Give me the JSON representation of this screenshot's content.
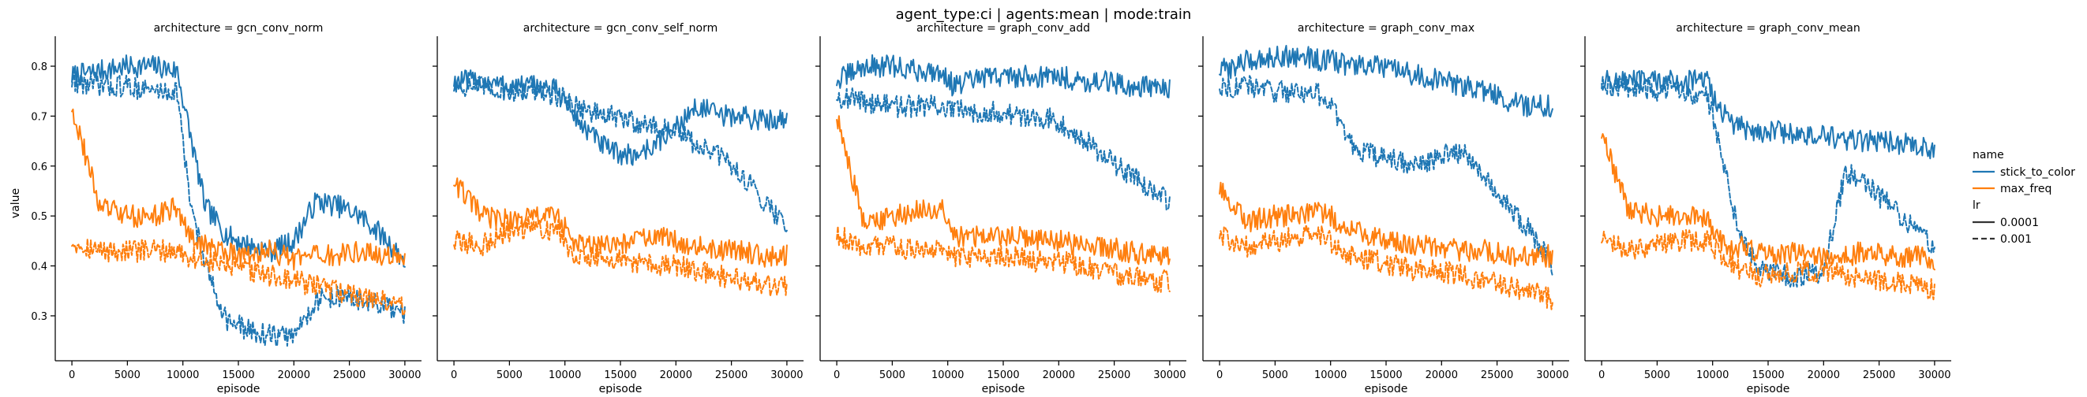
{
  "figure": {
    "suptitle": "agent_type:ci | agents:mean | mode:train",
    "ylabel": "value",
    "xlabel": "episode"
  },
  "legend": {
    "name_title": "name",
    "name_entries": [
      {
        "label": "stick_to_color",
        "color": "#1f77b4"
      },
      {
        "label": "max_freq",
        "color": "#ff7f0e"
      }
    ],
    "lr_title": "lr",
    "lr_entries": [
      {
        "label": "0.0001",
        "dash": "solid"
      },
      {
        "label": "0.001",
        "dash": "dashed"
      }
    ]
  },
  "chart_data": [
    {
      "type": "line",
      "title": "architecture = gcn_conv_norm",
      "xlabel": "episode",
      "ylabel": "value",
      "xlim": [
        -1500,
        31500
      ],
      "ylim": [
        0.21,
        0.86
      ],
      "xticks": [
        0,
        5000,
        10000,
        15000,
        20000,
        25000,
        30000
      ],
      "yticks": [
        0.3,
        0.4,
        0.5,
        0.6,
        0.7,
        0.8
      ],
      "x": [
        0,
        2500,
        5000,
        7500,
        9500,
        10500,
        12000,
        14000,
        16000,
        18000,
        20000,
        22000,
        24000,
        26000,
        28000,
        30000
      ],
      "series": [
        {
          "name": "stick_to_color",
          "lr": "0.0001",
          "color": "#1f77b4",
          "dash": "solid",
          "values": [
            0.78,
            0.79,
            0.8,
            0.8,
            0.79,
            0.68,
            0.52,
            0.46,
            0.44,
            0.43,
            0.45,
            0.53,
            0.52,
            0.5,
            0.46,
            0.41
          ]
        },
        {
          "name": "stick_to_color",
          "lr": "0.001",
          "color": "#1f77b4",
          "dash": "dashed",
          "values": [
            0.77,
            0.76,
            0.76,
            0.75,
            0.75,
            0.55,
            0.4,
            0.29,
            0.27,
            0.26,
            0.26,
            0.33,
            0.34,
            0.33,
            0.32,
            0.3
          ]
        },
        {
          "name": "max_freq",
          "lr": "0.0001",
          "color": "#ff7f0e",
          "dash": "solid",
          "values": [
            0.72,
            0.52,
            0.5,
            0.5,
            0.52,
            0.46,
            0.44,
            0.43,
            0.42,
            0.43,
            0.41,
            0.42,
            0.42,
            0.43,
            0.42,
            0.42
          ]
        },
        {
          "name": "max_freq",
          "lr": "0.001",
          "color": "#ff7f0e",
          "dash": "dashed",
          "values": [
            0.45,
            0.43,
            0.43,
            0.43,
            0.43,
            0.42,
            0.41,
            0.4,
            0.39,
            0.38,
            0.37,
            0.36,
            0.35,
            0.34,
            0.33,
            0.32
          ]
        }
      ]
    },
    {
      "type": "line",
      "title": "architecture = gcn_conv_self_norm",
      "xlabel": "episode",
      "ylabel": "",
      "xlim": [
        -1500,
        31500
      ],
      "ylim": [
        0.21,
        0.86
      ],
      "xticks": [
        0,
        5000,
        10000,
        15000,
        20000,
        25000,
        30000
      ],
      "yticks": [
        0.3,
        0.4,
        0.5,
        0.6,
        0.7,
        0.8
      ],
      "x": [
        0,
        2500,
        5000,
        7500,
        9500,
        10500,
        12000,
        14000,
        16000,
        18000,
        20000,
        22000,
        24000,
        26000,
        28000,
        30000
      ],
      "series": [
        {
          "name": "stick_to_color",
          "lr": "0.0001",
          "color": "#1f77b4",
          "dash": "solid",
          "values": [
            0.77,
            0.77,
            0.76,
            0.76,
            0.75,
            0.71,
            0.67,
            0.63,
            0.62,
            0.64,
            0.68,
            0.72,
            0.7,
            0.7,
            0.69,
            0.7
          ]
        },
        {
          "name": "stick_to_color",
          "lr": "0.001",
          "color": "#1f77b4",
          "dash": "dashed",
          "values": [
            0.76,
            0.76,
            0.75,
            0.75,
            0.74,
            0.73,
            0.71,
            0.7,
            0.69,
            0.68,
            0.67,
            0.64,
            0.62,
            0.58,
            0.53,
            0.48
          ]
        },
        {
          "name": "max_freq",
          "lr": "0.0001",
          "color": "#ff7f0e",
          "dash": "solid",
          "values": [
            0.57,
            0.5,
            0.49,
            0.5,
            0.5,
            0.45,
            0.44,
            0.44,
            0.45,
            0.46,
            0.45,
            0.44,
            0.43,
            0.43,
            0.42,
            0.42
          ]
        },
        {
          "name": "max_freq",
          "lr": "0.001",
          "color": "#ff7f0e",
          "dash": "dashed",
          "values": [
            0.45,
            0.44,
            0.47,
            0.48,
            0.47,
            0.43,
            0.42,
            0.41,
            0.41,
            0.4,
            0.4,
            0.39,
            0.38,
            0.37,
            0.36,
            0.36
          ]
        }
      ]
    },
    {
      "type": "line",
      "title": "architecture = graph_conv_add",
      "xlabel": "episode",
      "ylabel": "",
      "xlim": [
        -1500,
        31500
      ],
      "ylim": [
        0.21,
        0.86
      ],
      "xticks": [
        0,
        5000,
        10000,
        15000,
        20000,
        25000,
        30000
      ],
      "yticks": [
        0.3,
        0.4,
        0.5,
        0.6,
        0.7,
        0.8
      ],
      "x": [
        0,
        2500,
        5000,
        7500,
        9500,
        10500,
        12000,
        14000,
        16000,
        18000,
        20000,
        22000,
        24000,
        26000,
        28000,
        30000
      ],
      "series": [
        {
          "name": "stick_to_color",
          "lr": "0.0001",
          "color": "#1f77b4",
          "dash": "solid",
          "values": [
            0.77,
            0.8,
            0.8,
            0.79,
            0.79,
            0.76,
            0.77,
            0.78,
            0.78,
            0.78,
            0.78,
            0.77,
            0.77,
            0.76,
            0.76,
            0.75
          ]
        },
        {
          "name": "stick_to_color",
          "lr": "0.001",
          "color": "#1f77b4",
          "dash": "dashed",
          "values": [
            0.74,
            0.73,
            0.72,
            0.72,
            0.72,
            0.71,
            0.71,
            0.71,
            0.7,
            0.7,
            0.69,
            0.66,
            0.62,
            0.59,
            0.56,
            0.53
          ]
        },
        {
          "name": "max_freq",
          "lr": "0.0001",
          "color": "#ff7f0e",
          "dash": "solid",
          "values": [
            0.7,
            0.48,
            0.5,
            0.51,
            0.51,
            0.46,
            0.46,
            0.46,
            0.46,
            0.45,
            0.45,
            0.44,
            0.44,
            0.43,
            0.42,
            0.42
          ]
        },
        {
          "name": "max_freq",
          "lr": "0.001",
          "color": "#ff7f0e",
          "dash": "dashed",
          "values": [
            0.46,
            0.44,
            0.44,
            0.43,
            0.43,
            0.42,
            0.42,
            0.42,
            0.42,
            0.41,
            0.41,
            0.4,
            0.39,
            0.38,
            0.37,
            0.37
          ]
        }
      ]
    },
    {
      "type": "line",
      "title": "architecture = graph_conv_max",
      "xlabel": "episode",
      "ylabel": "",
      "xlim": [
        -1500,
        31500
      ],
      "ylim": [
        0.21,
        0.86
      ],
      "xticks": [
        0,
        5000,
        10000,
        15000,
        20000,
        25000,
        30000
      ],
      "yticks": [
        0.3,
        0.4,
        0.5,
        0.6,
        0.7,
        0.8
      ],
      "x": [
        0,
        2500,
        5000,
        7500,
        9500,
        10500,
        12000,
        14000,
        16000,
        18000,
        20000,
        22000,
        24000,
        26000,
        28000,
        30000
      ],
      "series": [
        {
          "name": "stick_to_color",
          "lr": "0.0001",
          "color": "#1f77b4",
          "dash": "solid",
          "values": [
            0.79,
            0.81,
            0.82,
            0.82,
            0.81,
            0.81,
            0.8,
            0.8,
            0.79,
            0.78,
            0.77,
            0.76,
            0.75,
            0.73,
            0.72,
            0.72
          ]
        },
        {
          "name": "stick_to_color",
          "lr": "0.001",
          "color": "#1f77b4",
          "dash": "dashed",
          "values": [
            0.76,
            0.76,
            0.75,
            0.75,
            0.74,
            0.7,
            0.64,
            0.62,
            0.61,
            0.6,
            0.62,
            0.63,
            0.58,
            0.52,
            0.47,
            0.4
          ]
        },
        {
          "name": "max_freq",
          "lr": "0.0001",
          "color": "#ff7f0e",
          "dash": "solid",
          "values": [
            0.55,
            0.49,
            0.5,
            0.5,
            0.51,
            0.49,
            0.47,
            0.46,
            0.45,
            0.44,
            0.44,
            0.43,
            0.43,
            0.42,
            0.42,
            0.42
          ]
        },
        {
          "name": "max_freq",
          "lr": "0.001",
          "color": "#ff7f0e",
          "dash": "dashed",
          "values": [
            0.46,
            0.44,
            0.45,
            0.46,
            0.46,
            0.44,
            0.42,
            0.41,
            0.4,
            0.39,
            0.39,
            0.38,
            0.37,
            0.36,
            0.35,
            0.33
          ]
        }
      ]
    },
    {
      "type": "line",
      "title": "architecture = graph_conv_mean",
      "xlabel": "episode",
      "ylabel": "",
      "xlim": [
        -1500,
        31500
      ],
      "ylim": [
        0.21,
        0.86
      ],
      "xticks": [
        0,
        5000,
        10000,
        15000,
        20000,
        25000,
        30000
      ],
      "yticks": [
        0.3,
        0.4,
        0.5,
        0.6,
        0.7,
        0.8
      ],
      "x": [
        0,
        2500,
        5000,
        7500,
        9500,
        10500,
        12000,
        14000,
        16000,
        18000,
        20000,
        22000,
        24000,
        26000,
        28000,
        30000
      ],
      "series": [
        {
          "name": "stick_to_color",
          "lr": "0.0001",
          "color": "#1f77b4",
          "dash": "solid",
          "values": [
            0.77,
            0.77,
            0.77,
            0.77,
            0.77,
            0.72,
            0.68,
            0.67,
            0.67,
            0.66,
            0.66,
            0.65,
            0.65,
            0.65,
            0.64,
            0.63
          ]
        },
        {
          "name": "stick_to_color",
          "lr": "0.001",
          "color": "#1f77b4",
          "dash": "dashed",
          "values": [
            0.76,
            0.76,
            0.75,
            0.75,
            0.74,
            0.66,
            0.5,
            0.4,
            0.38,
            0.38,
            0.39,
            0.59,
            0.56,
            0.52,
            0.48,
            0.44
          ]
        },
        {
          "name": "max_freq",
          "lr": "0.0001",
          "color": "#ff7f0e",
          "dash": "solid",
          "values": [
            0.66,
            0.51,
            0.5,
            0.5,
            0.5,
            0.45,
            0.44,
            0.43,
            0.42,
            0.43,
            0.42,
            0.42,
            0.43,
            0.42,
            0.42,
            0.41
          ]
        },
        {
          "name": "max_freq",
          "lr": "0.001",
          "color": "#ff7f0e",
          "dash": "dashed",
          "values": [
            0.45,
            0.43,
            0.44,
            0.45,
            0.45,
            0.43,
            0.4,
            0.38,
            0.38,
            0.39,
            0.39,
            0.38,
            0.37,
            0.37,
            0.36,
            0.35
          ]
        }
      ]
    }
  ]
}
